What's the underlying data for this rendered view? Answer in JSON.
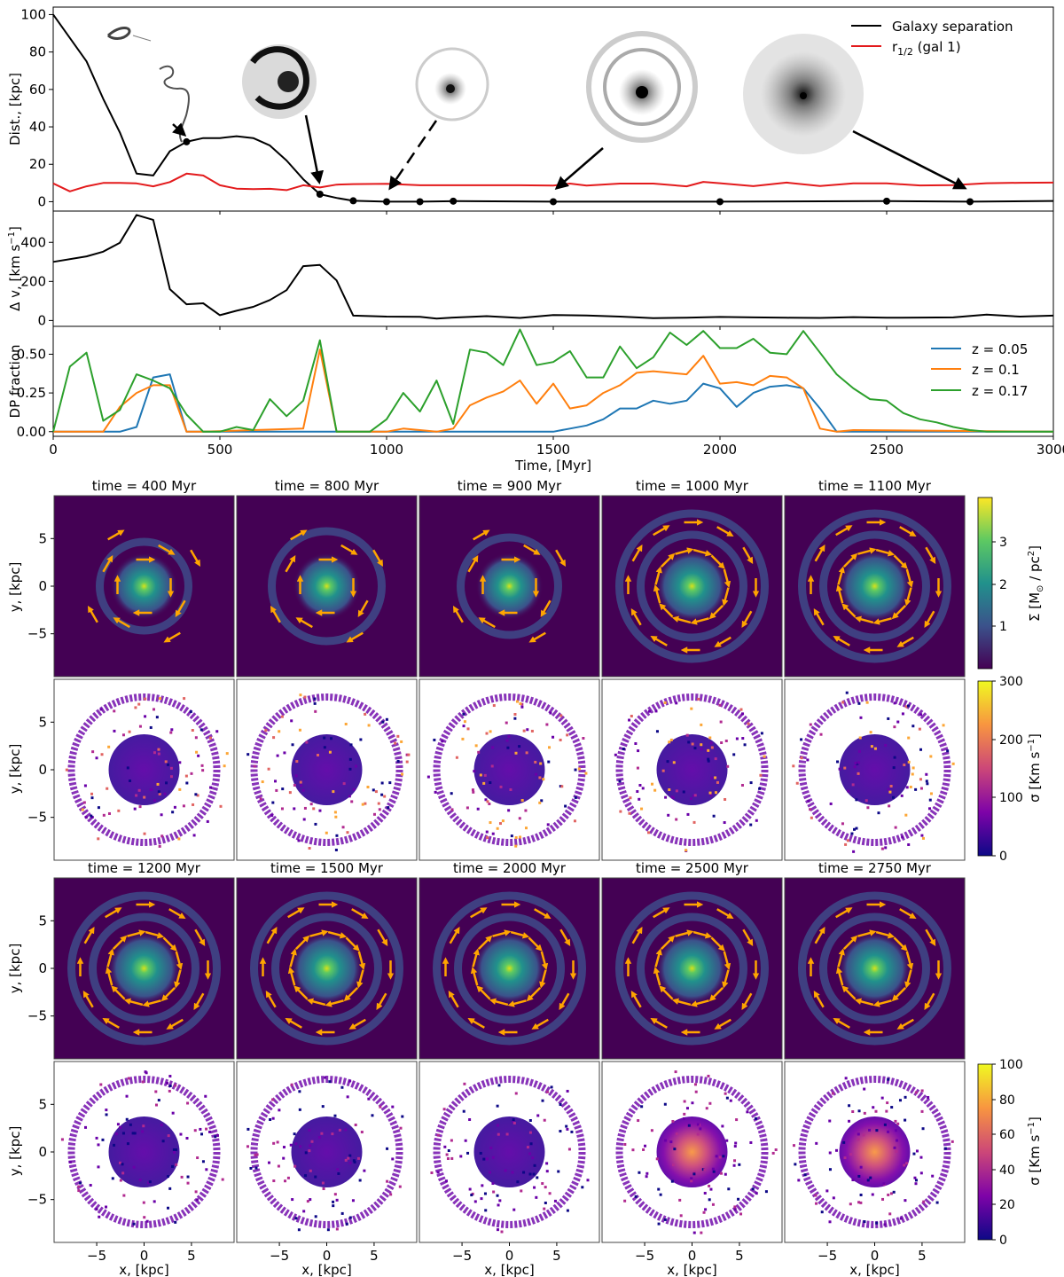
{
  "colors": {
    "black": "#000000",
    "red": "#e31a1c",
    "blue": "#1f77b4",
    "orange": "#ff7f0e",
    "green": "#2ca02c",
    "arrow": "#ffa500",
    "bg": "#440154"
  },
  "chart_data": [
    {
      "type": "line",
      "id": "separation",
      "ylabel": "Dist., [kpc]",
      "ylim": [
        -5,
        104
      ],
      "xlim": [
        0,
        3000
      ],
      "yticks": [
        0,
        20,
        40,
        60,
        80,
        100
      ],
      "legend_position": "top-right",
      "series": [
        {
          "name": "Galaxy separation",
          "color": "#000000",
          "x": [
            0,
            100,
            150,
            200,
            250,
            300,
            350,
            400,
            450,
            500,
            550,
            600,
            650,
            700,
            750,
            800,
            850,
            900,
            1000,
            1100,
            1200,
            1500,
            2000,
            2500,
            2750,
            3000
          ],
          "values": [
            100,
            75,
            55,
            37,
            15,
            14,
            27,
            32,
            34,
            34,
            35,
            34,
            30,
            22,
            12,
            4,
            2,
            0.5,
            0,
            0,
            0.3,
            0,
            0,
            0.3,
            0,
            0.4
          ]
        },
        {
          "name": "r_{1/2} (gal 1)",
          "color": "#e31a1c",
          "x": [
            0,
            50,
            100,
            150,
            200,
            250,
            300,
            350,
            400,
            450,
            500,
            550,
            600,
            650,
            700,
            750,
            800,
            850,
            900,
            1000,
            1100,
            1200,
            1300,
            1400,
            1500,
            1550,
            1600,
            1700,
            1800,
            1900,
            1950,
            2000,
            2100,
            2200,
            2300,
            2400,
            2500,
            2600,
            2700,
            2800,
            2900,
            3000
          ],
          "values": [
            9.8,
            5.5,
            8.2,
            10,
            10,
            9.8,
            8.2,
            10.5,
            15,
            14,
            8.8,
            7,
            6.7,
            6.9,
            6.2,
            8.8,
            7.6,
            9.1,
            9.4,
            9.6,
            8.8,
            8.8,
            8.8,
            8.8,
            8.6,
            9.7,
            8.6,
            9.7,
            9.7,
            8.2,
            10.6,
            9.9,
            8.3,
            10.2,
            8.4,
            9.8,
            9.8,
            8.7,
            8.9,
            9.9,
            10.1,
            10.2
          ]
        }
      ],
      "markers": {
        "x": [
          400,
          800,
          900,
          1000,
          1100,
          1200,
          1500,
          2000,
          2500,
          2750
        ],
        "values": [
          32,
          4,
          0.5,
          0,
          0,
          0.3,
          0,
          0,
          0.3,
          0
        ]
      }
    },
    {
      "type": "line",
      "id": "delta_v",
      "ylabel": "Δ v, [km s⁻¹]",
      "ylim": [
        -30,
        560
      ],
      "xlim": [
        0,
        3000
      ],
      "yticks": [
        0,
        200,
        400
      ],
      "series": [
        {
          "name": "Δv",
          "color": "#000000",
          "x": [
            0,
            100,
            150,
            200,
            250,
            300,
            350,
            400,
            450,
            500,
            550,
            600,
            650,
            700,
            750,
            800,
            850,
            900,
            1000,
            1100,
            1150,
            1200,
            1300,
            1400,
            1500,
            1600,
            1700,
            1800,
            1900,
            2000,
            2100,
            2200,
            2300,
            2400,
            2500,
            2600,
            2700,
            2800,
            2900,
            3000
          ],
          "values": [
            300,
            328,
            352,
            398,
            540,
            515,
            160,
            83,
            88,
            27,
            50,
            70,
            105,
            155,
            278,
            284,
            205,
            25,
            20,
            19,
            10,
            15,
            22,
            13,
            28,
            26,
            20,
            12,
            14,
            18,
            16,
            14,
            13,
            17,
            14,
            15,
            16,
            30,
            20,
            25
          ]
        }
      ]
    },
    {
      "type": "line",
      "id": "dp_fraction",
      "ylabel": "DP fraction",
      "xlabel": "Time, [Myr]",
      "ylim": [
        -0.03,
        0.68
      ],
      "xlim": [
        0,
        3000
      ],
      "yticks": [
        0.0,
        0.25,
        0.5
      ],
      "ytick_labels": [
        "0.00",
        "0.25",
        "0.50"
      ],
      "xticks": [
        0,
        500,
        1000,
        1500,
        2000,
        2500,
        3000
      ],
      "xtick_labels": [
        "0",
        "500",
        "1000",
        "1500",
        "2000",
        "2500",
        "3000"
      ],
      "legend_position": "top-right",
      "series": [
        {
          "name": "z = 0.05",
          "color": "#1f77b4",
          "x": [
            0,
            200,
            250,
            300,
            350,
            400,
            800,
            850,
            1500,
            1550,
            1600,
            1650,
            1700,
            1750,
            1800,
            1850,
            1900,
            1950,
            2000,
            2050,
            2100,
            2150,
            2200,
            2250,
            2300,
            2350,
            3000
          ],
          "values": [
            0,
            0,
            0.03,
            0.35,
            0.37,
            0,
            0,
            0,
            0,
            0.02,
            0.04,
            0.08,
            0.15,
            0.15,
            0.2,
            0.18,
            0.2,
            0.31,
            0.28,
            0.16,
            0.25,
            0.29,
            0.3,
            0.28,
            0.15,
            0,
            0
          ]
        },
        {
          "name": "z = 0.1",
          "color": "#ff7f0e",
          "x": [
            0,
            150,
            200,
            250,
            300,
            350,
            400,
            450,
            750,
            800,
            850,
            1000,
            1050,
            1150,
            1200,
            1250,
            1300,
            1350,
            1400,
            1450,
            1500,
            1550,
            1600,
            1650,
            1700,
            1750,
            1800,
            1850,
            1900,
            1950,
            2000,
            2050,
            2100,
            2150,
            2200,
            2250,
            2300,
            2350,
            2400,
            3000
          ],
          "values": [
            0,
            0,
            0.16,
            0.25,
            0.3,
            0.3,
            0,
            0,
            0.02,
            0.53,
            0,
            0,
            0.02,
            0,
            0.02,
            0.17,
            0.22,
            0.26,
            0.33,
            0.18,
            0.31,
            0.15,
            0.17,
            0.25,
            0.3,
            0.38,
            0.39,
            0.38,
            0.37,
            0.49,
            0.31,
            0.32,
            0.3,
            0.36,
            0.35,
            0.28,
            0.02,
            0,
            0.01,
            0
          ]
        },
        {
          "name": "z = 0.17",
          "color": "#2ca02c",
          "x": [
            0,
            50,
            100,
            150,
            200,
            250,
            300,
            350,
            400,
            450,
            500,
            550,
            600,
            650,
            700,
            750,
            800,
            850,
            900,
            950,
            1000,
            1050,
            1100,
            1150,
            1200,
            1250,
            1300,
            1350,
            1400,
            1450,
            1500,
            1550,
            1600,
            1650,
            1700,
            1750,
            1800,
            1850,
            1900,
            1950,
            2000,
            2050,
            2100,
            2150,
            2200,
            2250,
            2300,
            2350,
            2400,
            2450,
            2500,
            2550,
            2600,
            2650,
            2700,
            2750,
            2800,
            3000
          ],
          "values": [
            0,
            0.42,
            0.51,
            0.07,
            0.14,
            0.37,
            0.33,
            0.28,
            0.11,
            0,
            0,
            0.03,
            0.01,
            0.21,
            0.1,
            0.2,
            0.59,
            0,
            0,
            0,
            0.08,
            0.25,
            0.13,
            0.33,
            0.05,
            0.53,
            0.51,
            0.43,
            0.66,
            0.43,
            0.45,
            0.52,
            0.35,
            0.35,
            0.55,
            0.41,
            0.48,
            0.64,
            0.56,
            0.65,
            0.54,
            0.54,
            0.6,
            0.51,
            0.5,
            0.65,
            0.51,
            0.37,
            0.28,
            0.21,
            0.2,
            0.12,
            0.08,
            0.06,
            0.03,
            0.01,
            0,
            0
          ]
        }
      ]
    },
    {
      "type": "heatmap",
      "id": "grid_top",
      "panel_titles": [
        "time = 400 Myr",
        "time = 800 Myr",
        "time = 900 Myr",
        "time = 1000 Myr",
        "time = 1100 Myr"
      ],
      "ylabel": "y, [kpc]",
      "yticks": [
        5,
        0,
        -5
      ],
      "row1_quantity": "surface density with velocity arrows",
      "row2_quantity": "velocity dispersion",
      "colorbar1": {
        "label": "Σ [M⊙ / pc²]",
        "ticks": [
          "1",
          "2",
          "3"
        ]
      },
      "colorbar2": {
        "label": "σ [Km s⁻¹]",
        "ticks": [
          "0",
          "100",
          "200",
          "300"
        ]
      }
    },
    {
      "type": "heatmap",
      "id": "grid_bottom",
      "panel_titles": [
        "time = 1200 Myr",
        "time = 1500 Myr",
        "time = 2000 Myr",
        "time = 2500 Myr",
        "time = 2750 Myr"
      ],
      "ylabel": "y, [kpc]",
      "xlabel": "x, [kpc]",
      "xticks": [
        -5,
        0,
        5
      ],
      "yticks": [
        5,
        0,
        -5
      ],
      "colorbar2": {
        "label": "σ [Km s⁻¹]",
        "ticks": [
          "0",
          "20",
          "40",
          "60",
          "80",
          "100"
        ]
      }
    }
  ]
}
